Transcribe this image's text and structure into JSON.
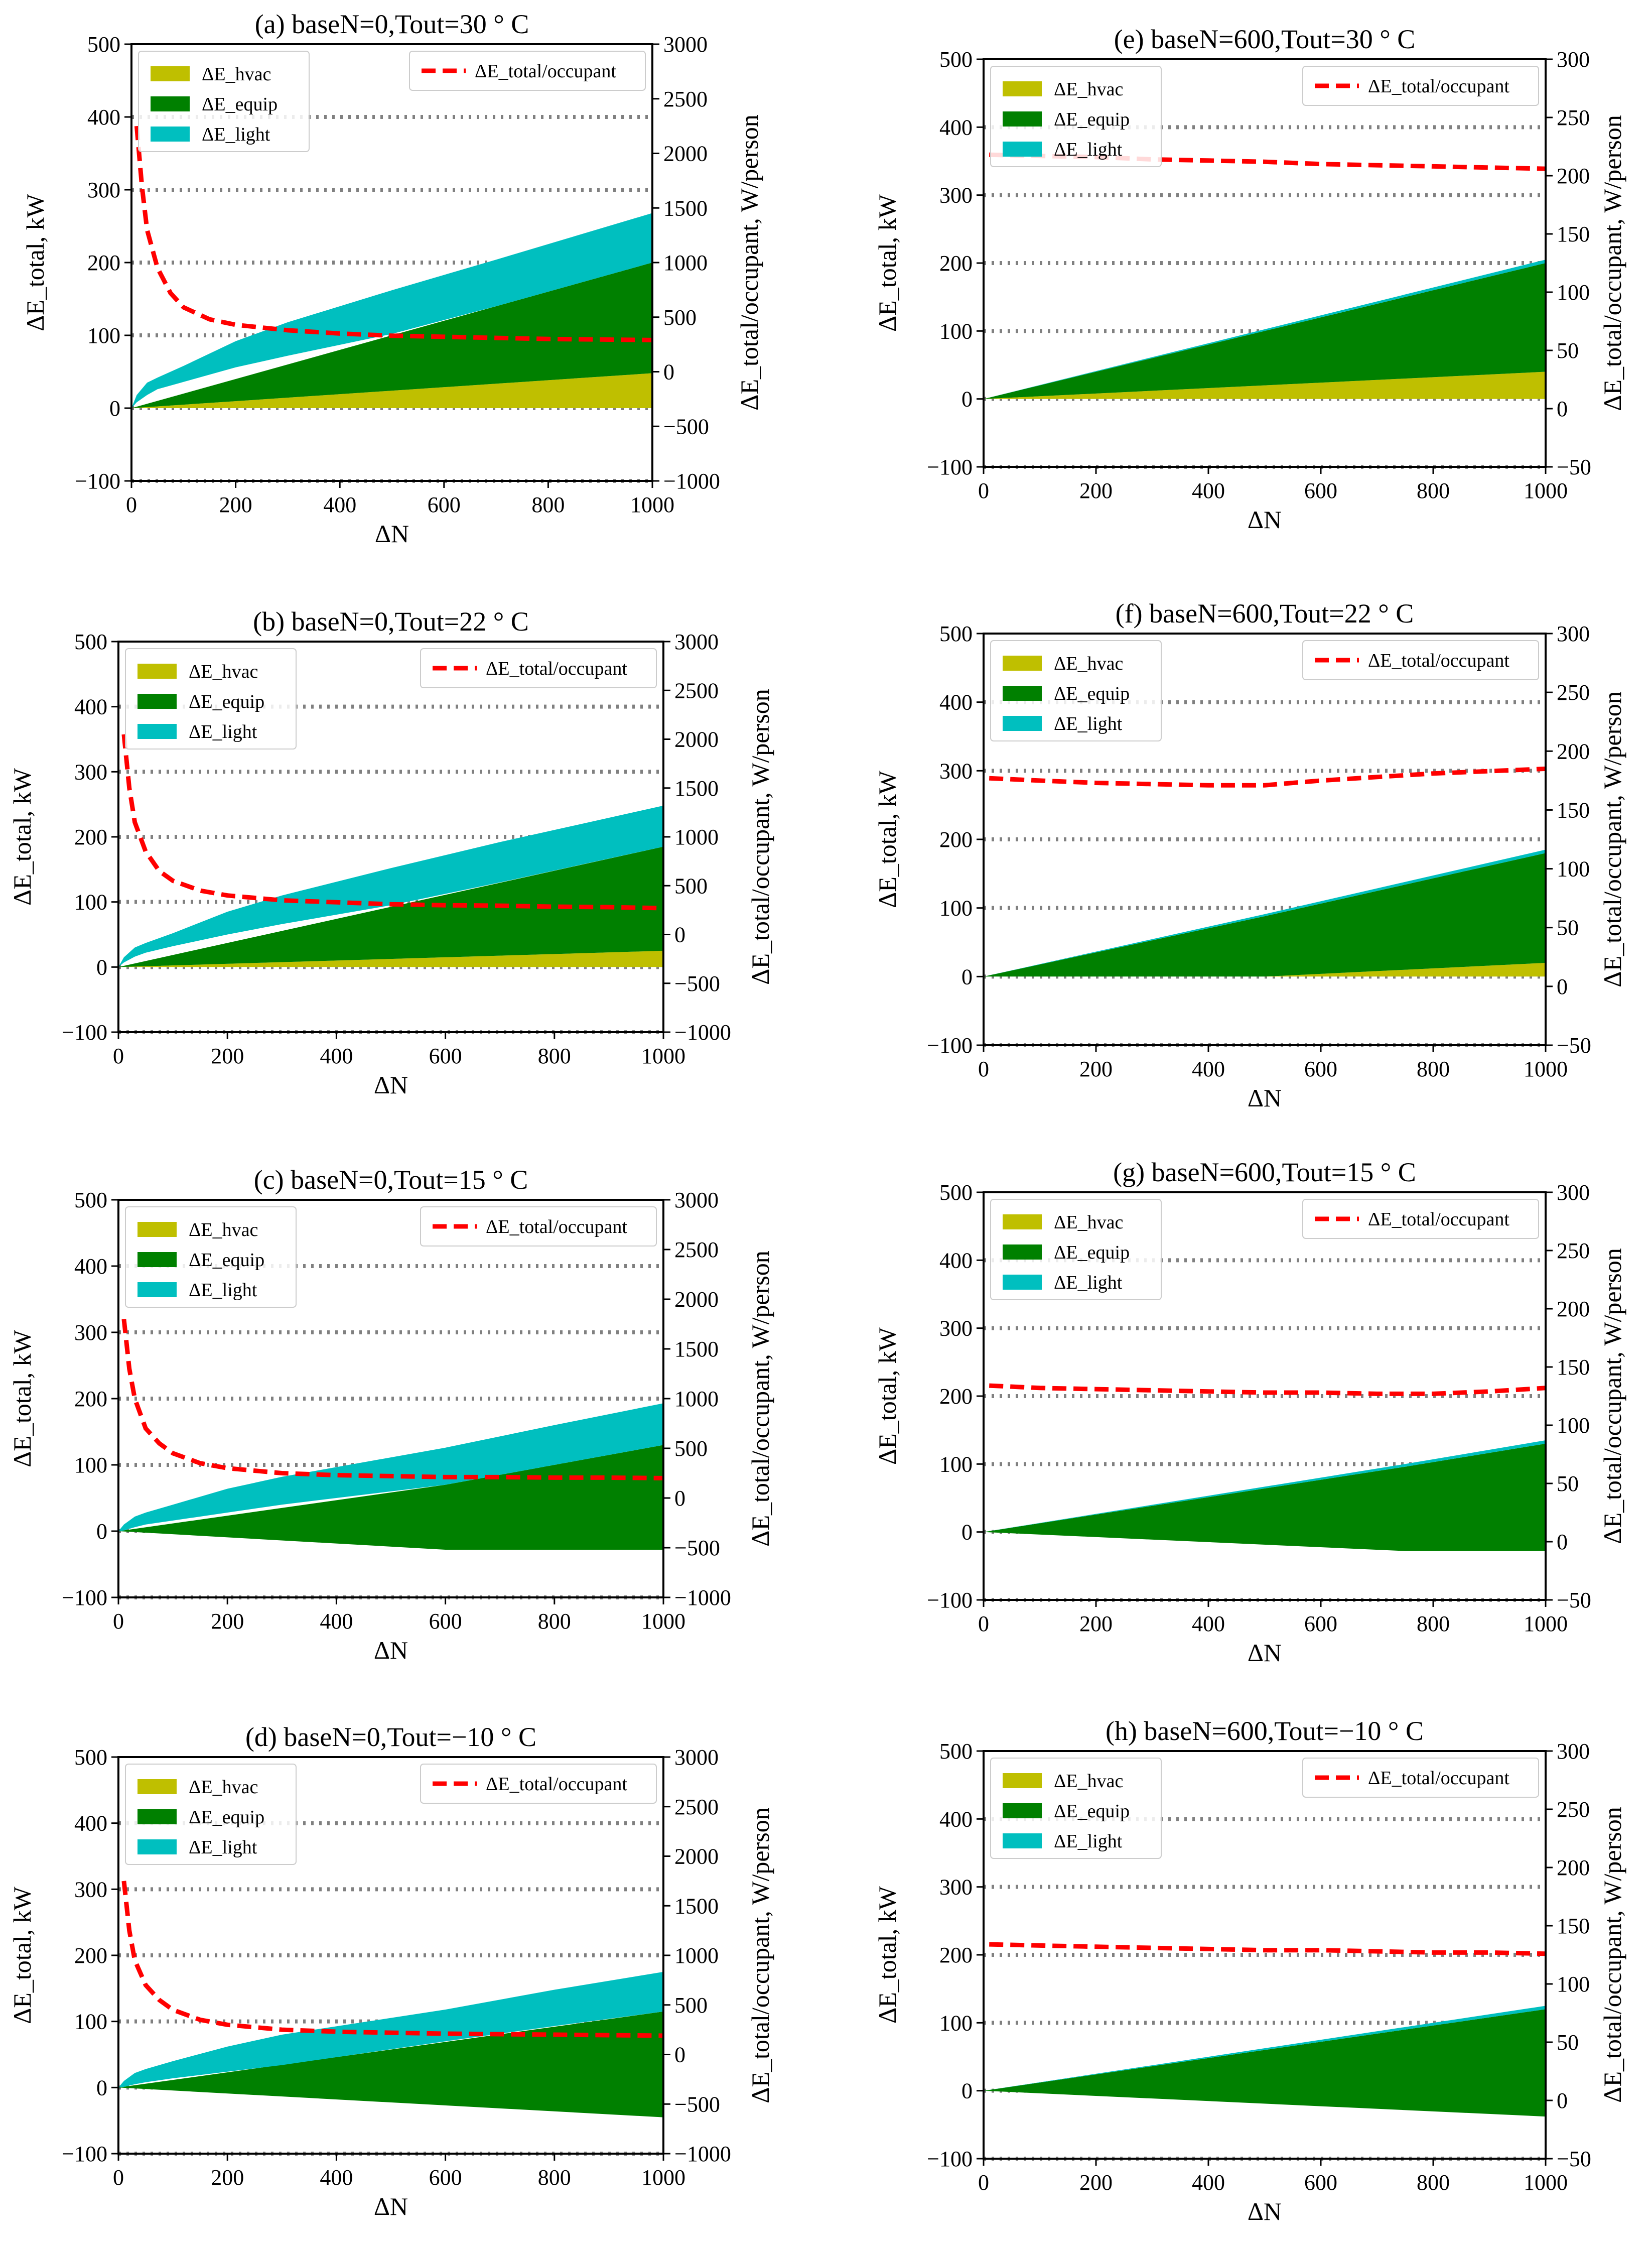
{
  "colors": {
    "hvac": "#bfbf00",
    "equip": "#008000",
    "light": "#00bfbf",
    "total_line": "#ff0000",
    "grid": "#808080"
  },
  "chart_data": [
    {
      "id": "a",
      "type": "area",
      "title": "(a) baseN=0,Tout=30 ° C",
      "xlabel": "ΔN",
      "ylabel": "ΔE_total, kW",
      "y2label": "ΔE_total/occupant, W/person",
      "xlim": [
        0,
        1000
      ],
      "ylim": [
        -100,
        500
      ],
      "y2lim": [
        -1000,
        3000
      ],
      "xticks": [
        "0",
        "200",
        "400",
        "600",
        "800",
        "1000"
      ],
      "yticks": [
        "−100",
        "0",
        "100",
        "200",
        "300",
        "400",
        "500"
      ],
      "y2ticks": [
        "−1000",
        "−500",
        "0",
        "500",
        "1000",
        "1500",
        "2000",
        "2500",
        "3000"
      ],
      "hgrid": [
        0,
        100,
        200,
        300,
        400
      ],
      "legend_left": [
        "ΔE_hvac",
        "ΔE_equip",
        "ΔE_light"
      ],
      "legend_right": "ΔE_total/occupant",
      "x": [
        0,
        1000
      ],
      "series": [
        {
          "name": "ΔE_hvac",
          "lower": [
            0,
            0
          ],
          "upper": [
            0,
            48
          ]
        },
        {
          "name": "ΔE_equip",
          "lower": [
            0,
            48
          ],
          "upper": [
            0,
            200
          ]
        },
        {
          "name": "ΔE_light",
          "x": [
            0,
            10,
            30,
            50,
            100,
            200,
            300,
            500,
            700,
            1000
          ],
          "lower": [
            0,
            8,
            18,
            26,
            36,
            56,
            72,
            102,
            140,
            200
          ],
          "upper": [
            0,
            18,
            35,
            42,
            58,
            92,
            118,
            162,
            204,
            268
          ]
        }
      ],
      "line": {
        "name": "ΔE_total/occupant",
        "x": [
          10,
          20,
          30,
          50,
          75,
          100,
          150,
          200,
          300,
          400,
          500,
          600,
          700,
          800,
          900,
          1000
        ],
        "y": [
          2250,
          1700,
          1300,
          950,
          720,
          590,
          480,
          430,
          380,
          350,
          330,
          320,
          310,
          300,
          295,
          290
        ]
      }
    },
    {
      "id": "b",
      "type": "area",
      "title": "(b) baseN=0,Tout=22 ° C",
      "xlabel": "ΔN",
      "ylabel": "ΔE_total, kW",
      "y2label": "ΔE_total/occupant, W/person",
      "xlim": [
        0,
        1000
      ],
      "ylim": [
        -100,
        500
      ],
      "y2lim": [
        -1000,
        3000
      ],
      "xticks": [
        "0",
        "200",
        "400",
        "600",
        "800",
        "1000"
      ],
      "yticks": [
        "−100",
        "0",
        "100",
        "200",
        "300",
        "400",
        "500"
      ],
      "y2ticks": [
        "−1000",
        "−500",
        "0",
        "500",
        "1000",
        "1500",
        "2000",
        "2500",
        "3000"
      ],
      "hgrid": [
        0,
        100,
        200,
        300,
        400
      ],
      "legend_left": [
        "ΔE_hvac",
        "ΔE_equip",
        "ΔE_light"
      ],
      "legend_right": "ΔE_total/occupant",
      "x": [
        0,
        1000
      ],
      "series": [
        {
          "name": "ΔE_hvac",
          "lower": [
            0,
            0
          ],
          "upper": [
            0,
            25
          ]
        },
        {
          "name": "ΔE_equip",
          "lower": [
            0,
            25
          ],
          "upper": [
            0,
            185
          ]
        },
        {
          "name": "ΔE_light",
          "x": [
            0,
            10,
            30,
            50,
            100,
            200,
            300,
            500,
            700,
            1000
          ],
          "lower": [
            0,
            7,
            16,
            22,
            32,
            50,
            66,
            95,
            130,
            185
          ],
          "upper": [
            0,
            15,
            30,
            37,
            52,
            85,
            110,
            152,
            192,
            248
          ]
        }
      ],
      "line": {
        "name": "ΔE_total/occupant",
        "x": [
          10,
          20,
          30,
          50,
          75,
          100,
          150,
          200,
          300,
          400,
          500,
          600,
          700,
          800,
          900,
          1000
        ],
        "y": [
          2050,
          1500,
          1150,
          850,
          650,
          550,
          450,
          400,
          350,
          330,
          310,
          300,
          295,
          285,
          280,
          270
        ]
      }
    },
    {
      "id": "c",
      "type": "area",
      "title": "(c) baseN=0,Tout=15 ° C",
      "xlabel": "ΔN",
      "ylabel": "ΔE_total, kW",
      "y2label": "ΔE_total/occupant, W/person",
      "xlim": [
        0,
        1000
      ],
      "ylim": [
        -100,
        500
      ],
      "y2lim": [
        -1000,
        3000
      ],
      "xticks": [
        "0",
        "200",
        "400",
        "600",
        "800",
        "1000"
      ],
      "yticks": [
        "−100",
        "0",
        "100",
        "200",
        "300",
        "400",
        "500"
      ],
      "y2ticks": [
        "−1000",
        "−500",
        "0",
        "500",
        "1000",
        "1500",
        "2000",
        "2500",
        "3000"
      ],
      "hgrid": [
        0,
        100,
        200,
        300,
        400
      ],
      "legend_left": [
        "ΔE_hvac",
        "ΔE_equip",
        "ΔE_light"
      ],
      "legend_right": "ΔE_total/occupant",
      "x": [
        0,
        1000
      ],
      "series": [
        {
          "name": "ΔE_hvac",
          "lower": [
            0,
            0
          ],
          "upper": [
            0,
            0
          ]
        },
        {
          "name": "ΔE_equip",
          "x": [
            0,
            600,
            1000
          ],
          "lower": [
            0,
            -28,
            -28
          ],
          "upper": [
            0,
            70,
            130
          ]
        },
        {
          "name": "ΔE_light",
          "x": [
            0,
            10,
            30,
            50,
            100,
            200,
            300,
            600,
            800,
            1000
          ],
          "lower": [
            0,
            1,
            6,
            10,
            16,
            28,
            40,
            70,
            100,
            130
          ],
          "upper": [
            0,
            10,
            22,
            28,
            40,
            64,
            82,
            126,
            160,
            193
          ]
        }
      ],
      "line": {
        "name": "ΔE_total/occupant",
        "x": [
          10,
          20,
          30,
          50,
          75,
          100,
          150,
          200,
          300,
          400,
          500,
          600,
          700,
          800,
          900,
          1000
        ],
        "y": [
          1800,
          1300,
          1000,
          700,
          550,
          450,
          350,
          300,
          250,
          230,
          220,
          210,
          210,
          205,
          205,
          200
        ]
      }
    },
    {
      "id": "d",
      "type": "area",
      "title": "(d) baseN=0,Tout=−10 ° C",
      "xlabel": "ΔN",
      "ylabel": "ΔE_total, kW",
      "y2label": "ΔE_total/occupant, W/person",
      "xlim": [
        0,
        1000
      ],
      "ylim": [
        -100,
        500
      ],
      "y2lim": [
        -1000,
        3000
      ],
      "xticks": [
        "0",
        "200",
        "400",
        "600",
        "800",
        "1000"
      ],
      "yticks": [
        "−100",
        "0",
        "100",
        "200",
        "300",
        "400",
        "500"
      ],
      "y2ticks": [
        "−1000",
        "−500",
        "0",
        "500",
        "1000",
        "1500",
        "2000",
        "2500",
        "3000"
      ],
      "hgrid": [
        0,
        100,
        200,
        300,
        400
      ],
      "legend_left": [
        "ΔE_hvac",
        "ΔE_equip",
        "ΔE_light"
      ],
      "legend_right": "ΔE_total/occupant",
      "x": [
        0,
        1000
      ],
      "series": [
        {
          "name": "ΔE_hvac",
          "lower": [
            0,
            0
          ],
          "upper": [
            0,
            0
          ]
        },
        {
          "name": "ΔE_equip",
          "x": [
            0,
            1000
          ],
          "lower": [
            0,
            -45
          ],
          "upper": [
            0,
            115
          ]
        },
        {
          "name": "ΔE_light",
          "x": [
            0,
            10,
            30,
            50,
            100,
            200,
            300,
            600,
            800,
            1000
          ],
          "lower": [
            0,
            1,
            5,
            8,
            14,
            24,
            34,
            70,
            93,
            115
          ],
          "upper": [
            0,
            10,
            22,
            28,
            40,
            62,
            80,
            118,
            148,
            175
          ]
        }
      ],
      "line": {
        "name": "ΔE_total/occupant",
        "x": [
          10,
          20,
          30,
          50,
          75,
          100,
          150,
          200,
          300,
          400,
          500,
          600,
          700,
          800,
          900,
          1000
        ],
        "y": [
          1750,
          1250,
          950,
          700,
          550,
          450,
          350,
          300,
          250,
          230,
          220,
          210,
          205,
          200,
          195,
          190
        ]
      }
    },
    {
      "id": "e",
      "type": "area",
      "title": "(e) baseN=600,Tout=30 ° C",
      "xlabel": "ΔN",
      "ylabel": "ΔE_total, kW",
      "y2label": "ΔE_total/occupant, W/person",
      "xlim": [
        0,
        1000
      ],
      "ylim": [
        -100,
        500
      ],
      "y2lim": [
        -50,
        300
      ],
      "xticks": [
        "0",
        "200",
        "400",
        "600",
        "800",
        "1000"
      ],
      "yticks": [
        "−100",
        "0",
        "100",
        "200",
        "300",
        "400",
        "500"
      ],
      "y2ticks": [
        "−50",
        "0",
        "50",
        "100",
        "150",
        "200",
        "250",
        "300"
      ],
      "hgrid": [
        0,
        100,
        200,
        300,
        400
      ],
      "legend_left": [
        "ΔE_hvac",
        "ΔE_equip",
        "ΔE_light"
      ],
      "legend_right": "ΔE_total/occupant",
      "x": [
        0,
        1000
      ],
      "series": [
        {
          "name": "ΔE_hvac",
          "lower": [
            0,
            0
          ],
          "upper": [
            0,
            40
          ]
        },
        {
          "name": "ΔE_equip",
          "lower": [
            0,
            40
          ],
          "upper": [
            0,
            200
          ]
        },
        {
          "name": "ΔE_light",
          "lower": [
            0,
            200
          ],
          "upper": [
            0,
            205
          ]
        }
      ],
      "line": {
        "name": "ΔE_total/occupant",
        "x": [
          10,
          100,
          200,
          300,
          400,
          500,
          600,
          700,
          800,
          900,
          1000
        ],
        "y": [
          218,
          217,
          216,
          214,
          213,
          212,
          210,
          209,
          208,
          207,
          206
        ]
      }
    },
    {
      "id": "f",
      "type": "area",
      "title": "(f) baseN=600,Tout=22 ° C",
      "xlabel": "ΔN",
      "ylabel": "ΔE_total, kW",
      "y2label": "ΔE_total/occupant, W/person",
      "xlim": [
        0,
        1000
      ],
      "ylim": [
        -100,
        500
      ],
      "y2lim": [
        -50,
        300
      ],
      "xticks": [
        "0",
        "200",
        "400",
        "600",
        "800",
        "1000"
      ],
      "yticks": [
        "−100",
        "0",
        "100",
        "200",
        "300",
        "400",
        "500"
      ],
      "y2ticks": [
        "−50",
        "0",
        "50",
        "100",
        "150",
        "200",
        "250",
        "300"
      ],
      "hgrid": [
        0,
        100,
        200,
        300,
        400
      ],
      "legend_left": [
        "ΔE_hvac",
        "ΔE_equip",
        "ΔE_light"
      ],
      "legend_right": "ΔE_total/occupant",
      "x": [
        0,
        1000
      ],
      "series": [
        {
          "name": "ΔE_hvac",
          "x": [
            0,
            500,
            1000
          ],
          "lower": [
            0,
            0,
            0
          ],
          "upper": [
            0,
            0,
            20
          ]
        },
        {
          "name": "ΔE_equip",
          "x": [
            0,
            500,
            1000
          ],
          "lower": [
            0,
            0,
            20
          ],
          "upper": [
            0,
            88,
            180
          ]
        },
        {
          "name": "ΔE_light",
          "x": [
            0,
            500,
            1000
          ],
          "lower": [
            0,
            88,
            180
          ],
          "upper": [
            0,
            91,
            185
          ]
        }
      ],
      "line": {
        "name": "ΔE_total/occupant",
        "x": [
          10,
          100,
          200,
          300,
          400,
          500,
          600,
          700,
          800,
          900,
          1000
        ],
        "y": [
          177,
          175,
          173,
          172,
          171,
          171,
          175,
          178,
          181,
          183,
          185
        ]
      }
    },
    {
      "id": "g",
      "type": "area",
      "title": "(g) baseN=600,Tout=15 ° C",
      "xlabel": "ΔN",
      "ylabel": "ΔE_total, kW",
      "y2label": "ΔE_total/occupant, W/person",
      "xlim": [
        0,
        1000
      ],
      "ylim": [
        -100,
        500
      ],
      "y2lim": [
        -50,
        300
      ],
      "xticks": [
        "0",
        "200",
        "400",
        "600",
        "800",
        "1000"
      ],
      "yticks": [
        "−100",
        "0",
        "100",
        "200",
        "300",
        "400",
        "500"
      ],
      "y2ticks": [
        "−50",
        "0",
        "50",
        "100",
        "150",
        "200",
        "250",
        "300"
      ],
      "hgrid": [
        0,
        100,
        200,
        300,
        400
      ],
      "legend_left": [
        "ΔE_hvac",
        "ΔE_equip",
        "ΔE_light"
      ],
      "legend_right": "ΔE_total/occupant",
      "x": [
        0,
        1000
      ],
      "series": [
        {
          "name": "ΔE_hvac",
          "lower": [
            0,
            0
          ],
          "upper": [
            0,
            0
          ]
        },
        {
          "name": "ΔE_equip",
          "x": [
            0,
            750,
            1000
          ],
          "lower": [
            0,
            -28,
            -28
          ],
          "upper": [
            0,
            96,
            130
          ]
        },
        {
          "name": "ΔE_light",
          "x": [
            0,
            750,
            1000
          ],
          "lower": [
            0,
            96,
            130
          ],
          "upper": [
            0,
            100,
            135
          ]
        }
      ],
      "line": {
        "name": "ΔE_total/occupant",
        "x": [
          10,
          100,
          200,
          300,
          400,
          500,
          600,
          700,
          800,
          900,
          1000
        ],
        "y": [
          134,
          132,
          131,
          130,
          129,
          128,
          128,
          127,
          127,
          129,
          132
        ]
      }
    },
    {
      "id": "h",
      "type": "area",
      "title": "(h) baseN=600,Tout=−10 ° C",
      "xlabel": "ΔN",
      "ylabel": "ΔE_total, kW",
      "y2label": "ΔE_total/occupant, W/person",
      "xlim": [
        0,
        1000
      ],
      "ylim": [
        -100,
        500
      ],
      "y2lim": [
        -50,
        300
      ],
      "xticks": [
        "0",
        "200",
        "400",
        "600",
        "800",
        "1000"
      ],
      "yticks": [
        "−100",
        "0",
        "100",
        "200",
        "300",
        "400",
        "500"
      ],
      "y2ticks": [
        "−50",
        "0",
        "50",
        "100",
        "150",
        "200",
        "250",
        "300"
      ],
      "hgrid": [
        0,
        100,
        200,
        300,
        400
      ],
      "legend_left": [
        "ΔE_hvac",
        "ΔE_equip",
        "ΔE_light"
      ],
      "legend_right": "ΔE_total/occupant",
      "x": [
        0,
        1000
      ],
      "series": [
        {
          "name": "ΔE_hvac",
          "lower": [
            0,
            0
          ],
          "upper": [
            0,
            0
          ]
        },
        {
          "name": "ΔE_equip",
          "x": [
            0,
            1000
          ],
          "lower": [
            0,
            -38
          ],
          "upper": [
            0,
            120
          ]
        },
        {
          "name": "ΔE_light",
          "x": [
            0,
            1000
          ],
          "lower": [
            0,
            120
          ],
          "upper": [
            0,
            125
          ]
        }
      ],
      "line": {
        "name": "ΔE_total/occupant",
        "x": [
          10,
          100,
          200,
          300,
          400,
          500,
          600,
          700,
          800,
          900,
          1000
        ],
        "y": [
          134,
          133,
          132,
          131,
          130,
          129,
          129,
          128,
          127,
          127,
          126
        ]
      }
    }
  ]
}
